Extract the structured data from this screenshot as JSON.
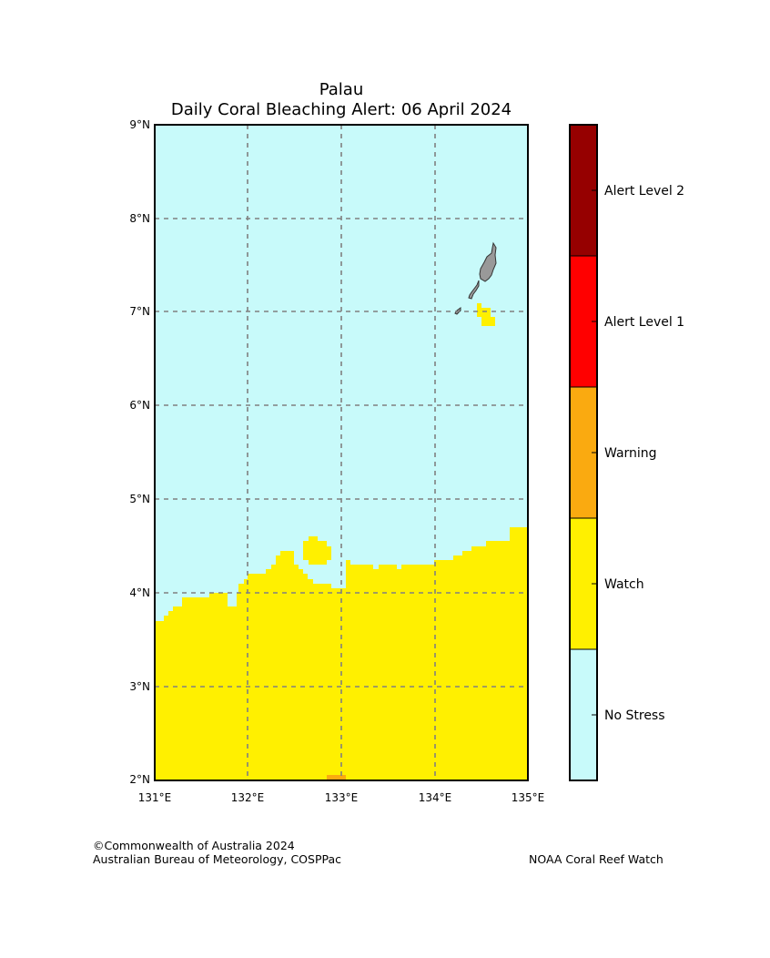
{
  "title": {
    "line1": "Palau",
    "line2": "Daily Coral Bleaching Alert: 06 April 2024"
  },
  "map": {
    "lon_range": [
      131,
      135
    ],
    "lat_range": [
      2,
      9
    ],
    "x_ticks": [
      "131°E",
      "132°E",
      "133°E",
      "134°E",
      "135°E"
    ],
    "y_ticks": [
      "2°N",
      "3°N",
      "4°N",
      "5°N",
      "6°N",
      "7°N",
      "8°N",
      "9°N"
    ],
    "gridlines": "dashed",
    "colors": {
      "no_stress": "#c8fafa",
      "watch": "#fff000",
      "warning": "#faaa10",
      "alert_level_1": "#ff0000",
      "alert_level_2": "#960000",
      "land": "#999999",
      "grid": "#808080"
    }
  },
  "legend": {
    "categories": [
      {
        "label": "No Stress",
        "color": "#c8fafa"
      },
      {
        "label": "Watch",
        "color": "#fff000"
      },
      {
        "label": "Warning",
        "color": "#faaa10"
      },
      {
        "label": "Alert Level 1",
        "color": "#ff0000"
      },
      {
        "label": "Alert Level 2",
        "color": "#960000"
      }
    ]
  },
  "footer": {
    "left_line1": "©Commonwealth of Australia 2024",
    "left_line2": "Australian Bureau of Meteorology, COSPPac",
    "right": "NOAA Coral Reef Watch"
  }
}
